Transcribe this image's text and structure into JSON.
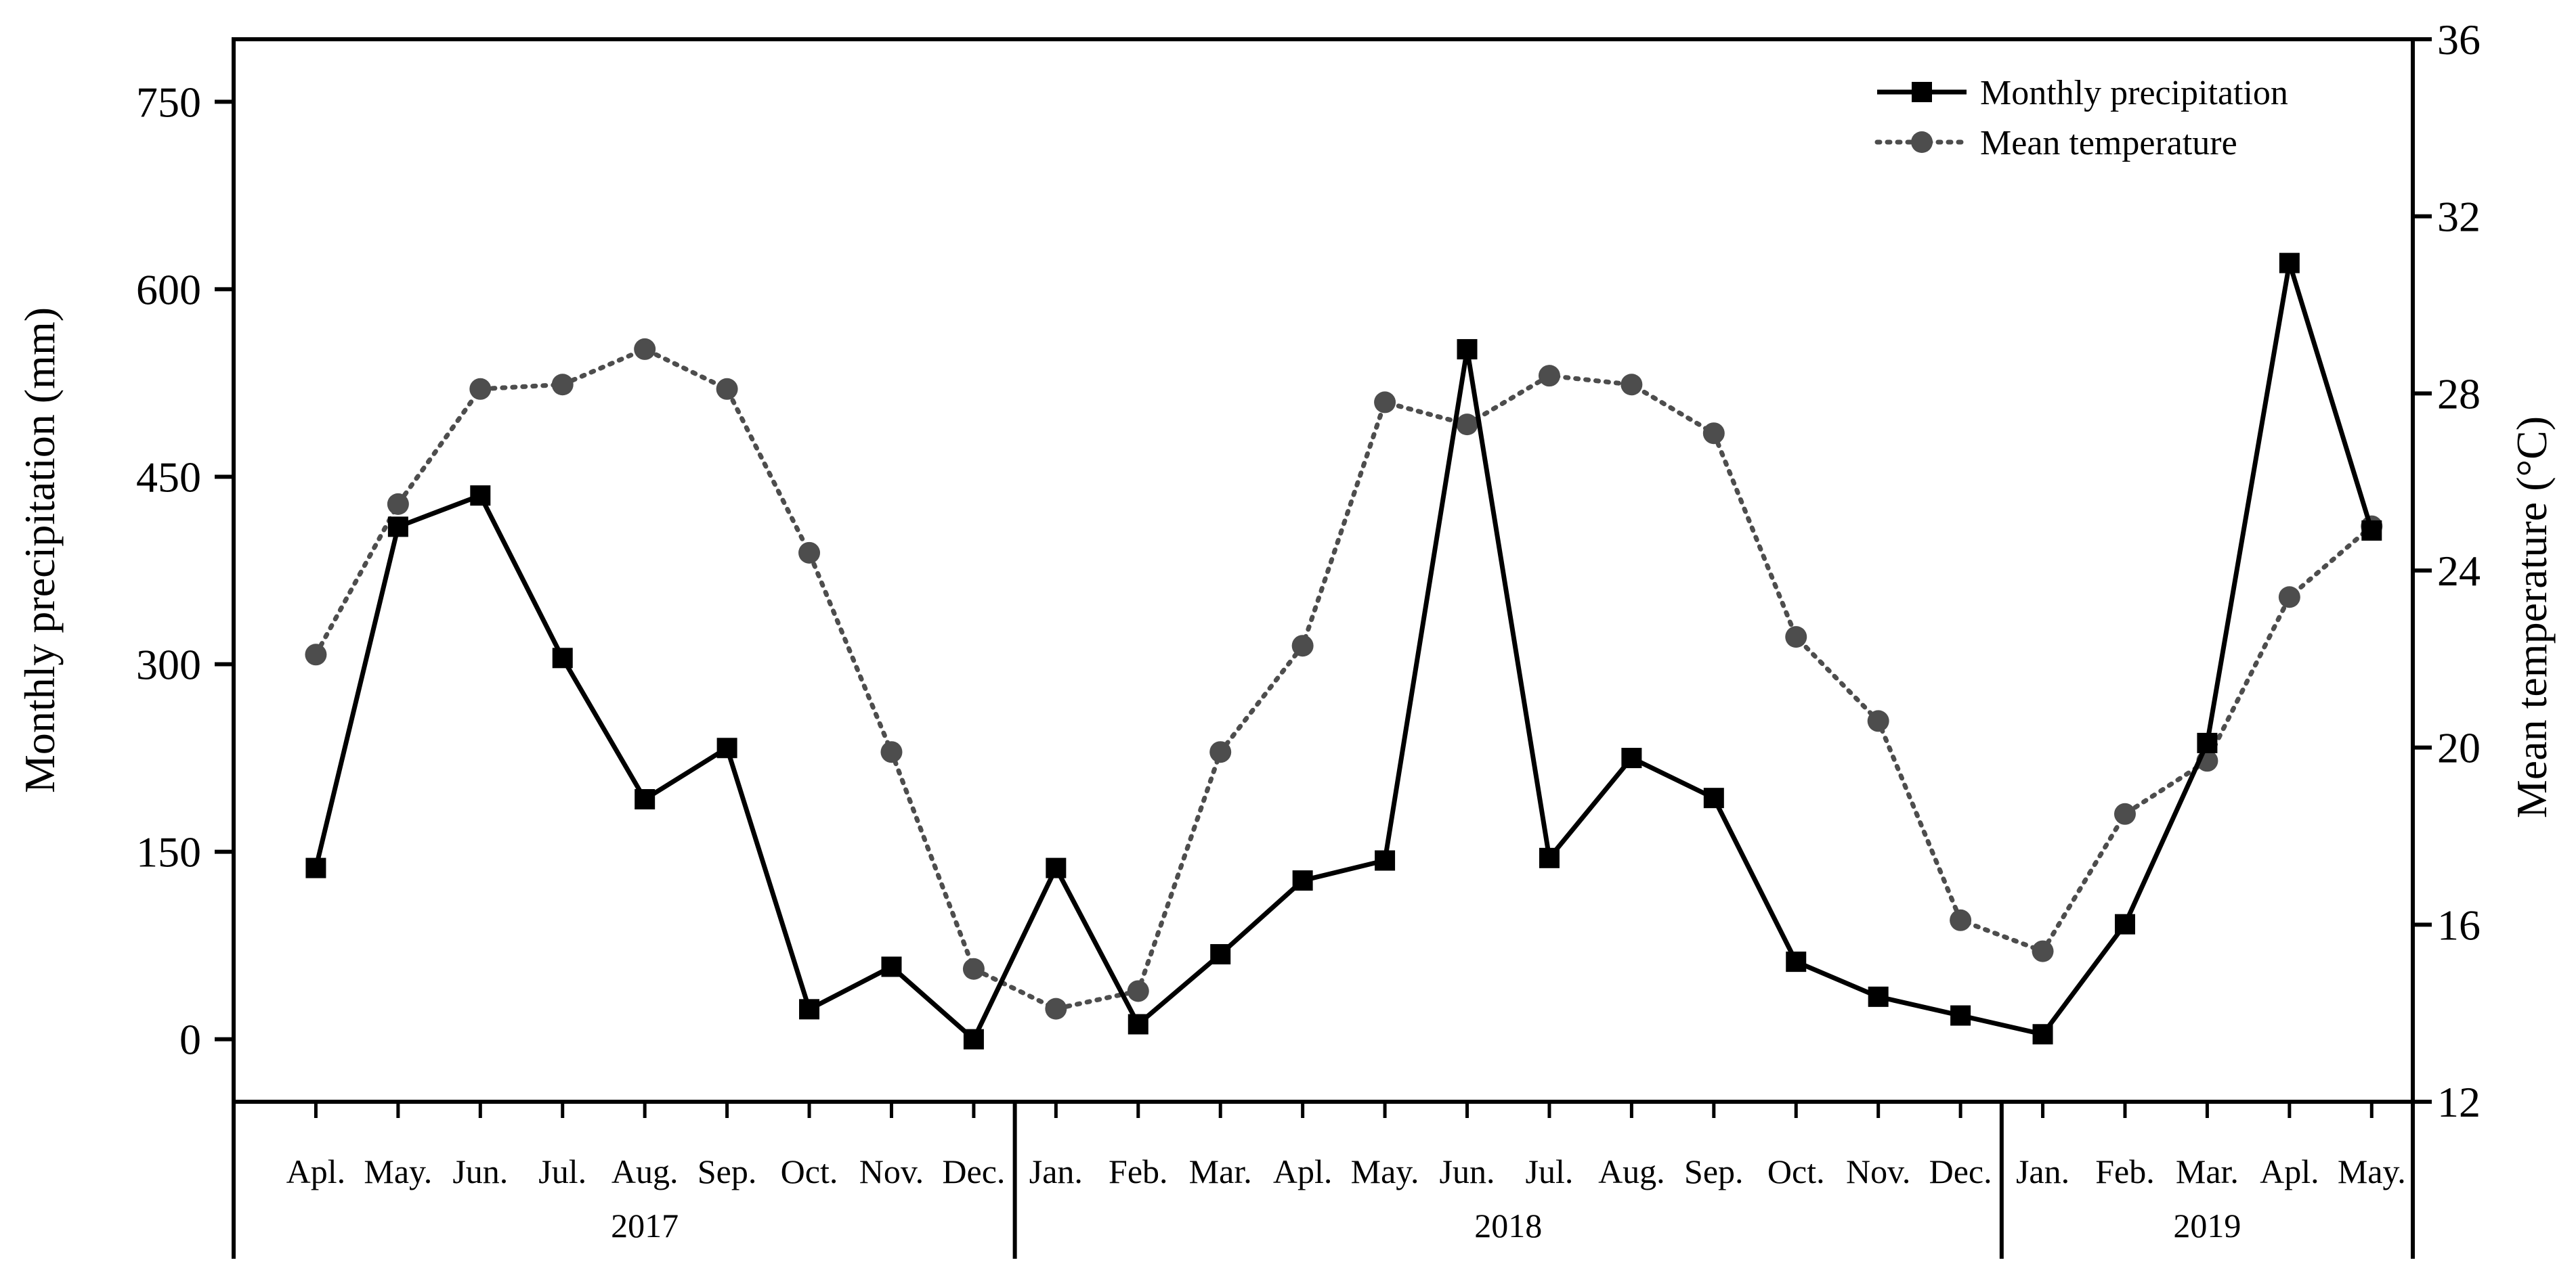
{
  "chart_data": {
    "type": "line",
    "categories": [
      "Apl.",
      "May.",
      "Jun.",
      "Jul.",
      "Aug.",
      "Sep.",
      "Oct.",
      "Nov.",
      "Dec.",
      "Jan.",
      "Feb.",
      "Mar.",
      "Apl.",
      "May.",
      "Jun.",
      "Jul.",
      "Aug.",
      "Sep.",
      "Oct.",
      "Nov.",
      "Dec.",
      "Jan.",
      "Feb.",
      "Mar.",
      "Apl.",
      "May."
    ],
    "year_groups": [
      {
        "label": "2017",
        "count": 9
      },
      {
        "label": "2018",
        "count": 12
      },
      {
        "label": "2019",
        "count": 5
      }
    ],
    "series": [
      {
        "name": "Monthly precipitation",
        "axis": "left",
        "color": "#000000",
        "line_style": "solid",
        "marker": "square",
        "values": [
          137,
          410,
          435,
          305,
          192,
          233,
          24,
          58,
          0,
          137,
          12,
          68,
          127,
          143,
          552,
          145,
          225,
          193,
          62,
          34,
          19,
          4,
          92,
          237,
          621,
          407
        ]
      },
      {
        "name": "Mean temperature",
        "axis": "right",
        "color": "#4d4d4d",
        "line_style": "dotted",
        "marker": "circle",
        "values": [
          22.1,
          25.5,
          28.1,
          28.2,
          29.0,
          28.1,
          24.4,
          19.9,
          15.0,
          14.1,
          14.5,
          19.9,
          22.3,
          27.8,
          27.3,
          28.4,
          28.2,
          27.1,
          22.5,
          20.6,
          16.1,
          15.4,
          18.5,
          19.7,
          23.4,
          25.0
        ]
      }
    ],
    "ylabel_left": "Monthly precipitation (mm)",
    "ylabel_right": "Mean temperature (°C)",
    "ylim_left": [
      -50,
      800
    ],
    "ylim_right": [
      12,
      36
    ],
    "yticks_left": [
      "0",
      "150",
      "300",
      "450",
      "600",
      "750"
    ],
    "yticks_right": [
      "12",
      "16",
      "20",
      "24",
      "28",
      "32",
      "36"
    ],
    "legend_position": "top-right",
    "grid": false
  }
}
